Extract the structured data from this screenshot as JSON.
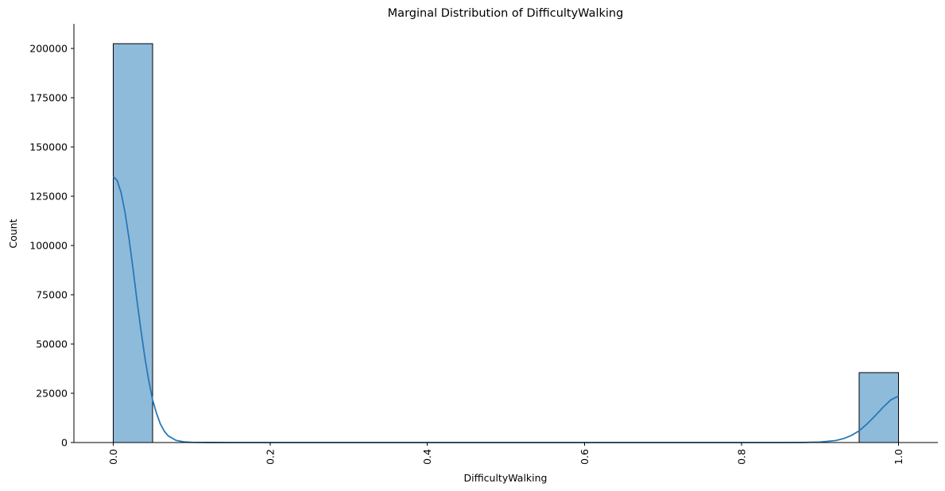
{
  "chart_data": {
    "type": "bar",
    "subtype": "histogram-with-kde",
    "title": "Marginal Distribution of DifficultyWalking",
    "xlabel": "DifficultyWalking",
    "ylabel": "Count",
    "xlim": [
      -0.05,
      1.05
    ],
    "ylim": [
      0,
      212500
    ],
    "x_ticks": [
      0.0,
      0.2,
      0.4,
      0.6,
      0.8,
      1.0
    ],
    "x_tick_labels": [
      "0.0",
      "0.2",
      "0.4",
      "0.6",
      "0.8",
      "1.0"
    ],
    "x_tick_rotation": -90,
    "y_ticks": [
      0,
      25000,
      50000,
      75000,
      100000,
      125000,
      150000,
      175000,
      200000
    ],
    "y_tick_labels": [
      "0",
      "25000",
      "50000",
      "75000",
      "100000",
      "125000",
      "150000",
      "175000",
      "200000"
    ],
    "bars": [
      {
        "x0": 0.0,
        "x1": 0.05,
        "value": 202500
      },
      {
        "x0": 0.95,
        "x1": 1.0,
        "value": 35500
      }
    ],
    "kde": {
      "x": [
        0.0,
        0.005,
        0.01,
        0.015,
        0.02,
        0.025,
        0.03,
        0.035,
        0.04,
        0.045,
        0.05,
        0.055,
        0.06,
        0.065,
        0.07,
        0.08,
        0.09,
        0.1,
        0.12,
        0.15,
        0.2,
        0.4,
        0.6,
        0.8,
        0.85,
        0.88,
        0.9,
        0.92,
        0.93,
        0.94,
        0.95,
        0.96,
        0.97,
        0.98,
        0.99,
        1.0
      ],
      "y": [
        135000,
        133000,
        127000,
        117000,
        104000,
        89000,
        73000,
        58000,
        44000,
        32000,
        22000,
        15000,
        9500,
        5800,
        3400,
        1100,
        330,
        100,
        20,
        5,
        2,
        0,
        0,
        0,
        5,
        60,
        250,
        1000,
        2000,
        3600,
        6000,
        9500,
        13500,
        17800,
        21600,
        23600
      ]
    },
    "bar_color": "#8fbbdb",
    "line_color": "#2a78b5",
    "grid": false,
    "legend": "none"
  }
}
